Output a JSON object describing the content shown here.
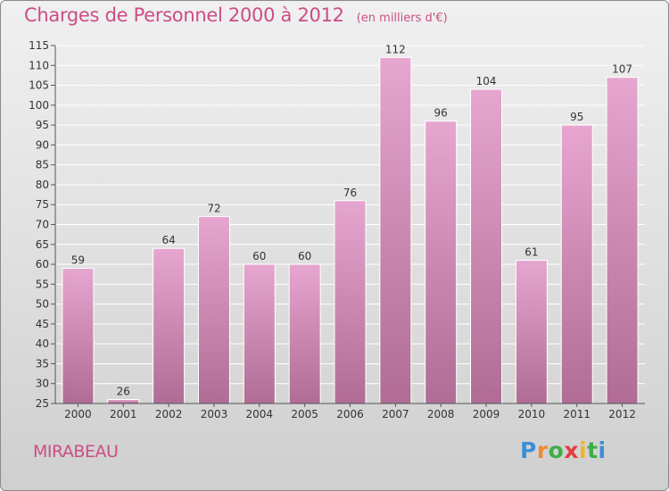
{
  "colors": {
    "title": "#cc4d85",
    "bar_top": "#e6a6cf",
    "bar_bottom": "#b06c95",
    "bar_edge": "#ffffff",
    "grid": "#ffffff",
    "axis_text": "#333333",
    "value_text": "#333333"
  },
  "commune": "MIRABEAU",
  "brand": {
    "letters": [
      "P",
      "r",
      "o",
      "x",
      "i",
      "t",
      "i"
    ],
    "colors": [
      "#3a8fd6",
      "#f08a2c",
      "#3fae49",
      "#e13c3c",
      "#f4b323",
      "#3fae49",
      "#3a8fd6"
    ]
  },
  "chart_data": {
    "type": "bar",
    "title": "Charges de Personnel 2000 à 2012",
    "subtitle": "(en milliers d'€)",
    "categories": [
      "2000",
      "2001",
      "2002",
      "2003",
      "2004",
      "2005",
      "2006",
      "2007",
      "2008",
      "2009",
      "2010",
      "2011",
      "2012"
    ],
    "values": [
      59,
      26,
      64,
      72,
      60,
      60,
      76,
      112,
      96,
      104,
      61,
      95,
      107
    ],
    "ylim": [
      25,
      115
    ],
    "yticks": [
      25,
      30,
      35,
      40,
      45,
      50,
      55,
      60,
      65,
      70,
      75,
      80,
      85,
      90,
      95,
      100,
      105,
      110,
      115
    ],
    "grid": true,
    "xlabel": "",
    "ylabel": ""
  }
}
